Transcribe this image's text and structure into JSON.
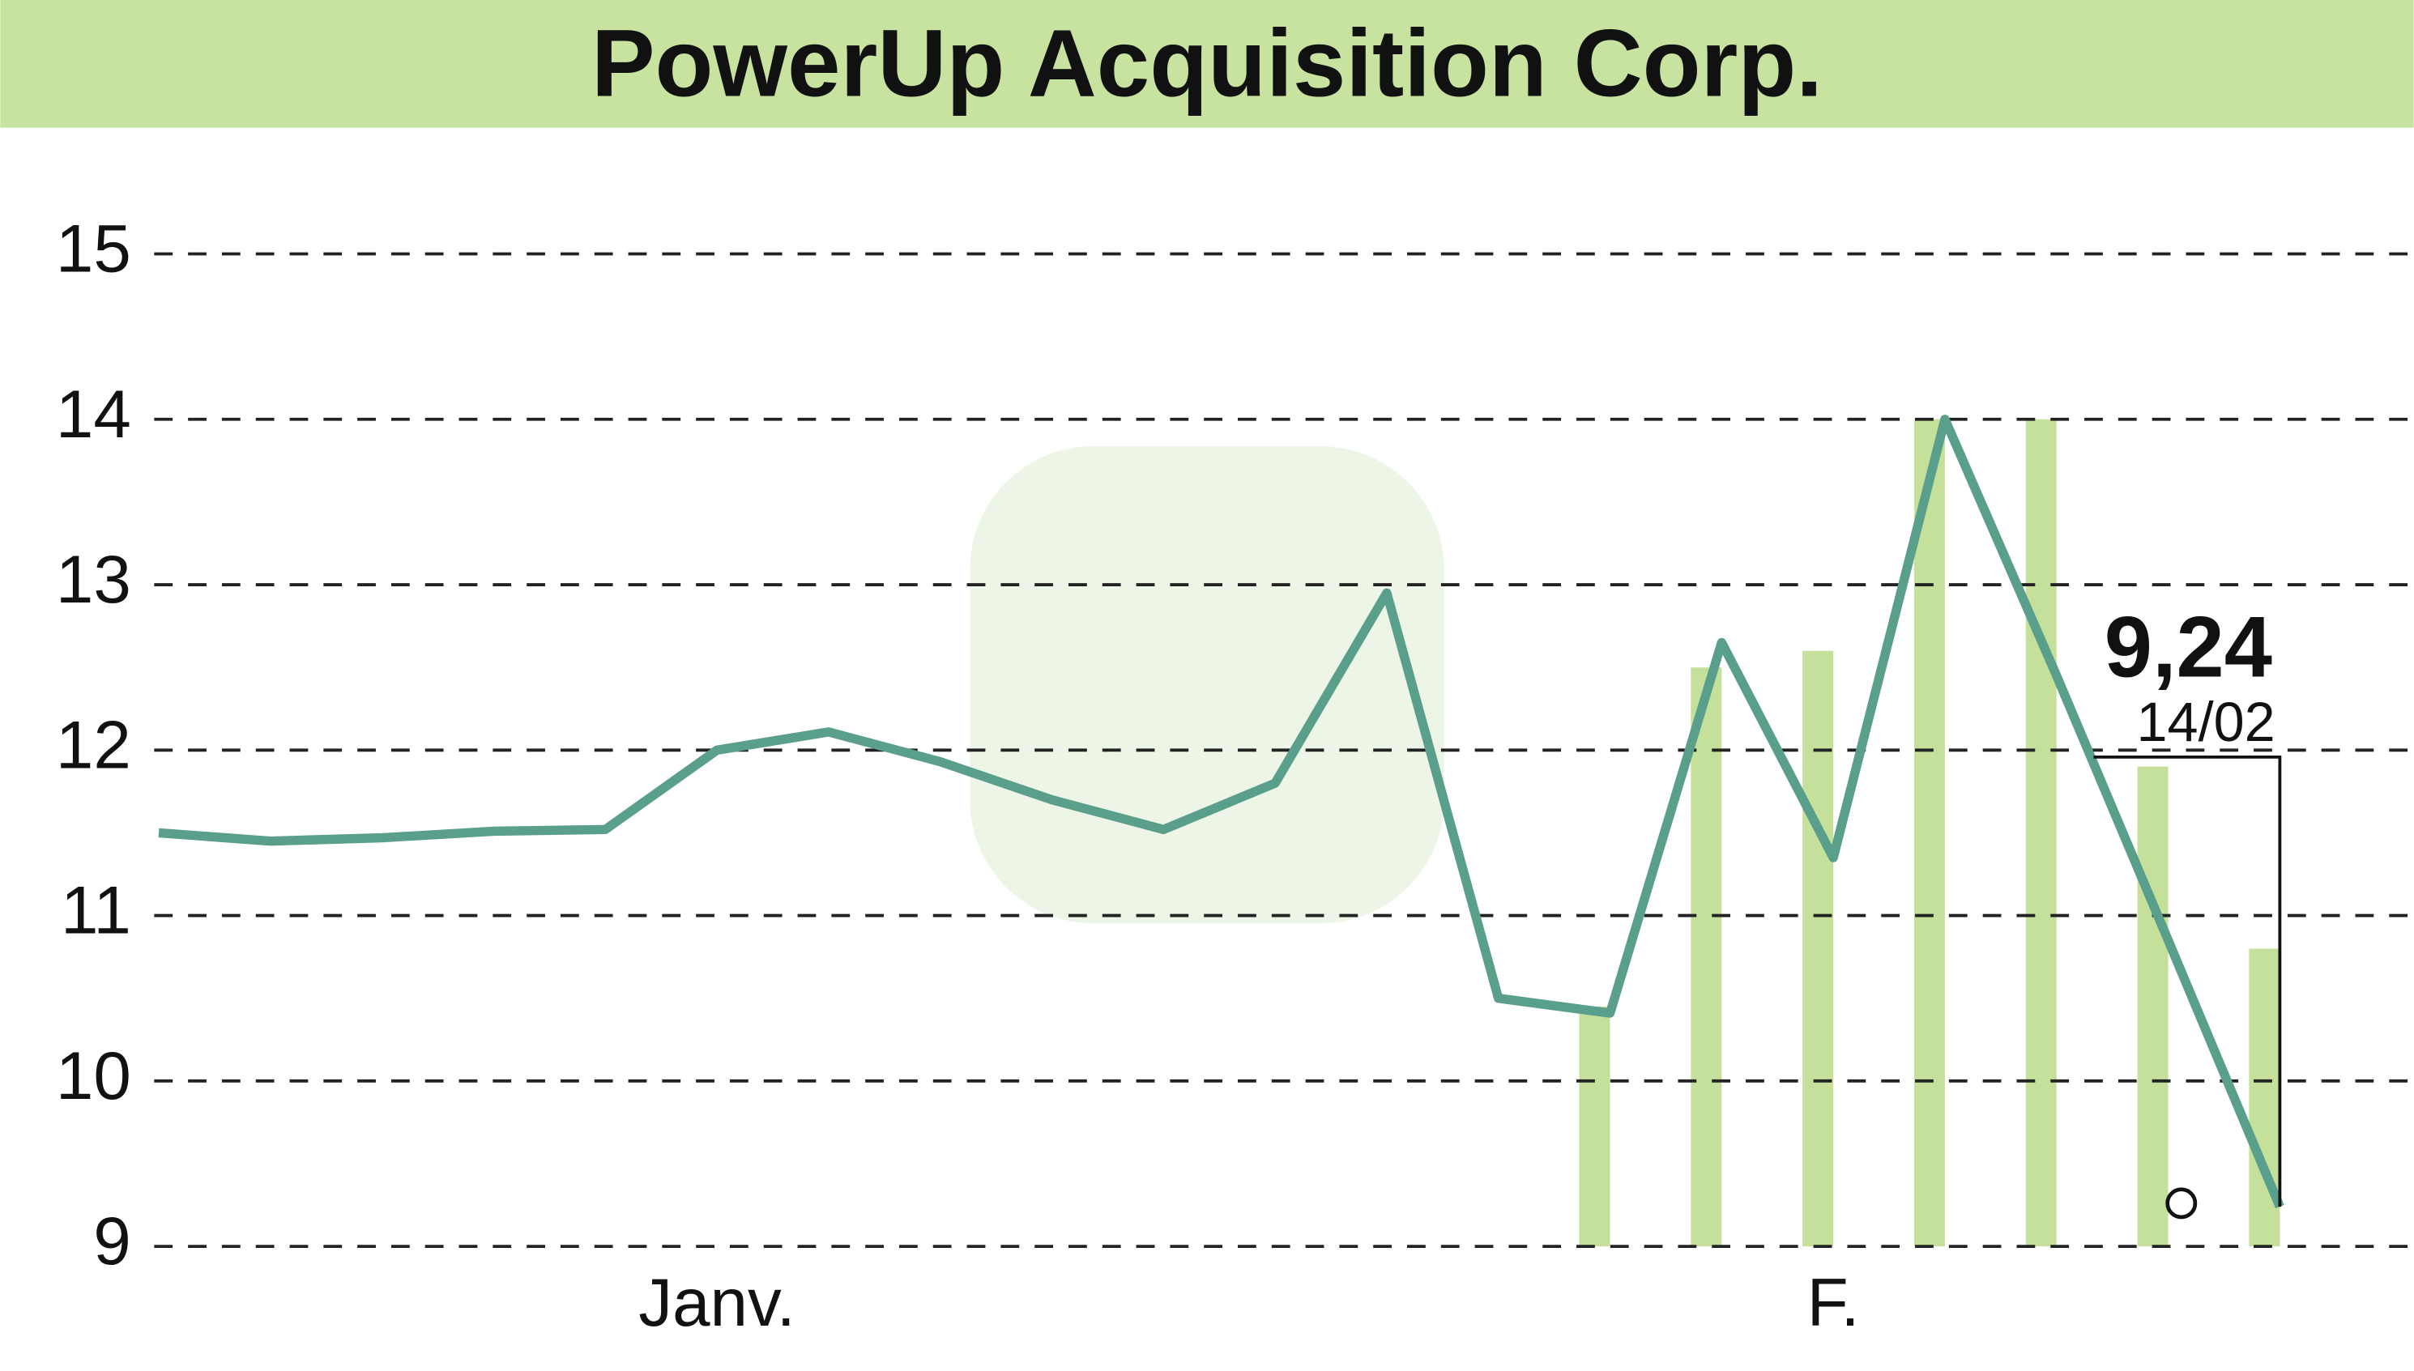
{
  "chart_data": {
    "type": "line",
    "title": "PowerUp Acquisition Corp.",
    "categories": [
      null,
      null,
      null,
      null,
      null,
      "Janv.",
      null,
      null,
      null,
      null,
      null,
      null,
      null,
      null,
      null,
      "F.",
      null,
      null,
      null,
      null
    ],
    "series": [
      {
        "color": "#5a9e8c",
        "values": [
          11.5,
          11.45,
          11.47,
          11.51,
          11.52,
          12.0,
          12.11,
          11.93,
          11.7,
          11.52,
          11.8,
          12.95,
          10.5,
          10.41,
          12.65,
          11.35,
          14.0,
          12.45,
          10.85,
          9.24
        ]
      }
    ],
    "volume": {
      "color": "#c5e09a",
      "values": [
        null,
        null,
        null,
        null,
        null,
        null,
        null,
        null,
        null,
        null,
        null,
        null,
        null,
        10.45,
        12.5,
        12.6,
        14.0,
        14.0,
        11.9,
        10.8
      ]
    },
    "ylim": [
      9,
      15
    ],
    "yticks": [
      9,
      10,
      11,
      12,
      13,
      14,
      15
    ],
    "grid": true,
    "annotation": {
      "value": 9.24,
      "value_label": "9,24",
      "date": "14/02"
    }
  }
}
